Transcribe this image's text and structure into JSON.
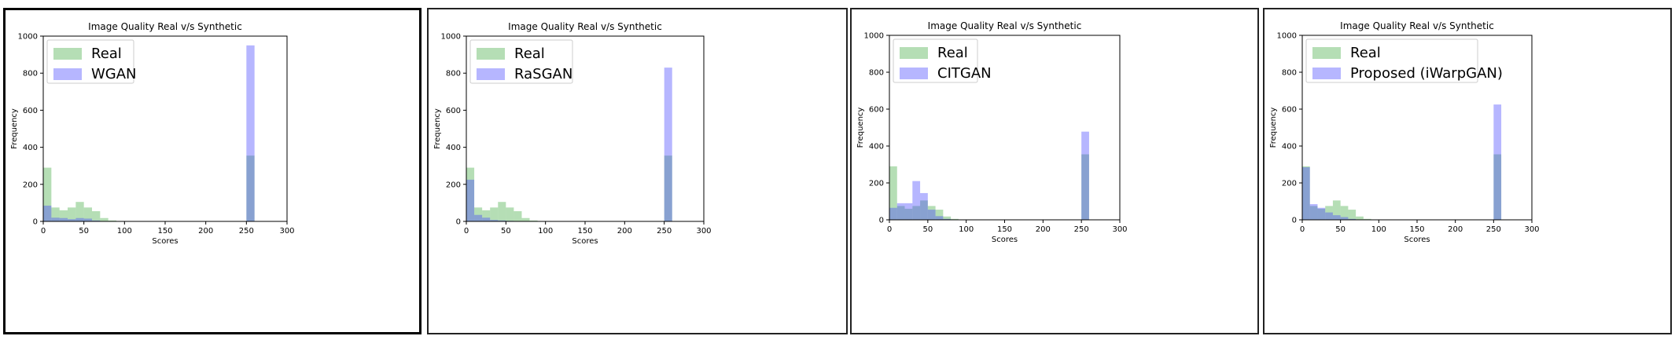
{
  "colors": {
    "real": "#2ca02c",
    "synthetic": "#4040ff"
  },
  "chart_data": [
    {
      "type": "bar",
      "title": "Image Quality Real v/s Synthetic",
      "xlabel": "Scores",
      "ylabel": "Frequency",
      "xlim": [
        0,
        300
      ],
      "ylim": [
        0,
        1000
      ],
      "xticks": [
        0,
        50,
        100,
        150,
        200,
        250,
        300
      ],
      "yticks": [
        0,
        200,
        400,
        600,
        800,
        1000
      ],
      "legend_position": "top-left",
      "bin_width": 10,
      "bins": [
        0,
        10,
        20,
        30,
        40,
        50,
        60,
        70,
        80,
        250
      ],
      "series": [
        {
          "name": "Real",
          "values": [
            290,
            75,
            60,
            75,
            105,
            75,
            55,
            18,
            5,
            355
          ]
        },
        {
          "name": "WGAN",
          "values": [
            85,
            20,
            18,
            12,
            18,
            15,
            5,
            2,
            0,
            950
          ]
        }
      ]
    },
    {
      "type": "bar",
      "title": "Image Quality Real v/s Synthetic",
      "xlabel": "Scores",
      "ylabel": "Frequency",
      "xlim": [
        0,
        300
      ],
      "ylim": [
        0,
        1000
      ],
      "xticks": [
        0,
        50,
        100,
        150,
        200,
        250,
        300
      ],
      "yticks": [
        0,
        200,
        400,
        600,
        800,
        1000
      ],
      "legend_position": "top-left",
      "bin_width": 10,
      "bins": [
        0,
        10,
        20,
        30,
        40,
        50,
        60,
        70,
        80,
        250
      ],
      "series": [
        {
          "name": "Real",
          "values": [
            290,
            75,
            60,
            75,
            105,
            75,
            55,
            18,
            5,
            355
          ]
        },
        {
          "name": "RaSGAN",
          "values": [
            225,
            35,
            20,
            8,
            5,
            3,
            2,
            0,
            0,
            830
          ]
        }
      ]
    },
    {
      "type": "bar",
      "title": "Image Quality Real v/s Synthetic",
      "xlabel": "Scores",
      "ylabel": "Frequency",
      "xlim": [
        0,
        300
      ],
      "ylim": [
        0,
        1000
      ],
      "xticks": [
        0,
        50,
        100,
        150,
        200,
        250,
        300
      ],
      "yticks": [
        0,
        200,
        400,
        600,
        800,
        1000
      ],
      "legend_position": "top-left",
      "bin_width": 10,
      "bins": [
        0,
        10,
        20,
        30,
        40,
        50,
        60,
        70,
        80,
        250
      ],
      "series": [
        {
          "name": "Real",
          "values": [
            290,
            75,
            60,
            75,
            105,
            75,
            55,
            18,
            5,
            355
          ]
        },
        {
          "name": "CITGAN",
          "values": [
            65,
            90,
            90,
            210,
            145,
            55,
            20,
            5,
            0,
            478
          ]
        }
      ]
    },
    {
      "type": "bar",
      "title": "Image Quality Real v/s Synthetic",
      "xlabel": "Scores",
      "ylabel": "Frequency",
      "xlim": [
        0,
        300
      ],
      "ylim": [
        0,
        1000
      ],
      "xticks": [
        0,
        50,
        100,
        150,
        200,
        250,
        300
      ],
      "yticks": [
        0,
        200,
        400,
        600,
        800,
        1000
      ],
      "legend_position": "top-left",
      "bin_width": 10,
      "bins": [
        0,
        10,
        20,
        30,
        40,
        50,
        60,
        70,
        80,
        250
      ],
      "series": [
        {
          "name": "Real",
          "values": [
            290,
            75,
            60,
            75,
            105,
            75,
            55,
            18,
            5,
            355
          ]
        },
        {
          "name": "Proposed (iWarpGAN)",
          "values": [
            285,
            85,
            65,
            40,
            25,
            15,
            5,
            2,
            0,
            625
          ]
        }
      ]
    }
  ]
}
